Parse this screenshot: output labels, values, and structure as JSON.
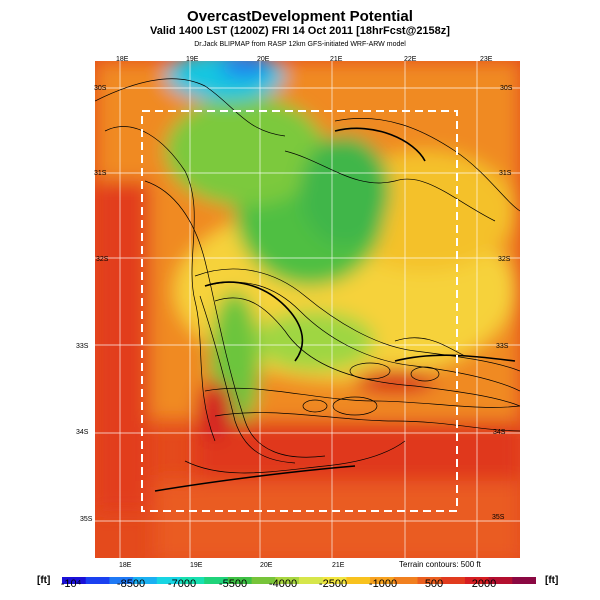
{
  "header": {
    "title": "OvercastDevelopment Potential",
    "valid_line": "Valid 1400 LST (1200Z) FRI 14 Oct 2011 [18hrFcst@2158z]",
    "credit_line": "Dr.Jack BLIPMAP from RASP 12km GFS-initiated WRF-ARW model"
  },
  "map": {
    "top_lon_labels": [
      "18E",
      "19E",
      "20E",
      "21E",
      "22E",
      "23E"
    ],
    "bottom_lon_labels": [
      "18E",
      "19E",
      "20E",
      "21E"
    ],
    "left_lat_labels": [
      "30S",
      "31S",
      "32S",
      "33S",
      "34S",
      "35S"
    ],
    "right_lat_labels": [
      "30S",
      "31S",
      "32S",
      "33S",
      "34S",
      "35S"
    ]
  },
  "legend": {
    "unit_left": "[ft]",
    "unit_right": "[ft]",
    "labels": [
      "-10⁴",
      "-8500",
      "-7000",
      "-5500",
      "-4000",
      "-2500",
      "-1000",
      "500",
      "2000"
    ],
    "terrain_note": "Terrain contours: 500 ft",
    "colors": [
      "#1a10d8",
      "#1a40f0",
      "#1f79f5",
      "#1ab0f2",
      "#17d5e3",
      "#18e0b0",
      "#1fd37a",
      "#3ec044",
      "#77c43a",
      "#a8d640",
      "#d6e64a",
      "#f2e640",
      "#f8c21e",
      "#f7a220",
      "#f1801f",
      "#ea5e1f",
      "#e13b1e",
      "#d51d22",
      "#b30f2f",
      "#8a0842"
    ]
  }
}
